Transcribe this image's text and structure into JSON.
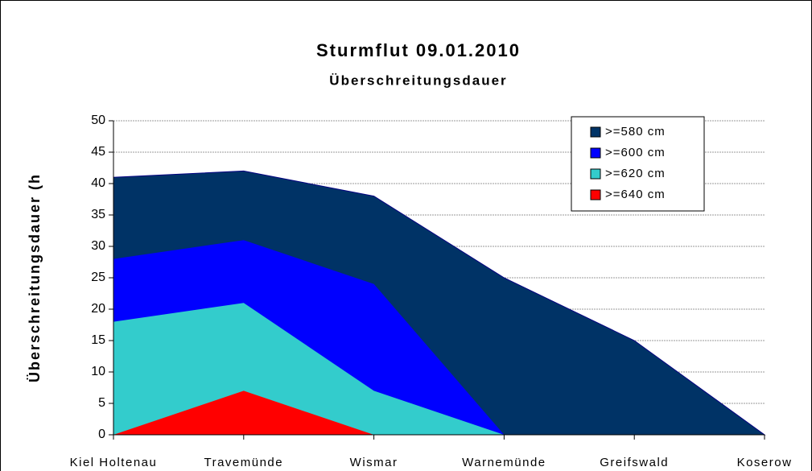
{
  "chart_data": {
    "type": "area",
    "title": "Sturmflut 09.01.2010",
    "subtitle": "Überschreitungsdauer",
    "y_label": "Überschreitungsdauer (h",
    "categories": [
      "Kiel Holtenau",
      "Travemünde",
      "Wismar",
      "Warnemünde",
      "Greifswald",
      "Koserow"
    ],
    "series": [
      {
        "name": ">=580 cm",
        "color": "#003366",
        "values": [
          41,
          42,
          38,
          25,
          15,
          0
        ]
      },
      {
        "name": ">=600 cm",
        "color": "#0000ff",
        "values": [
          28,
          31,
          24,
          0,
          0,
          0
        ]
      },
      {
        "name": ">=620 cm",
        "color": "#33cccc",
        "values": [
          18,
          21,
          7,
          0,
          0,
          0
        ]
      },
      {
        "name": ">=640 cm",
        "color": "#ff0000",
        "values": [
          0,
          7,
          0,
          0,
          0,
          0
        ]
      }
    ],
    "ylim": [
      0,
      50
    ],
    "yticks": [
      0,
      5,
      10,
      15,
      20,
      25,
      30,
      35,
      40,
      45,
      50
    ],
    "grid": true,
    "legend": "upper right"
  }
}
